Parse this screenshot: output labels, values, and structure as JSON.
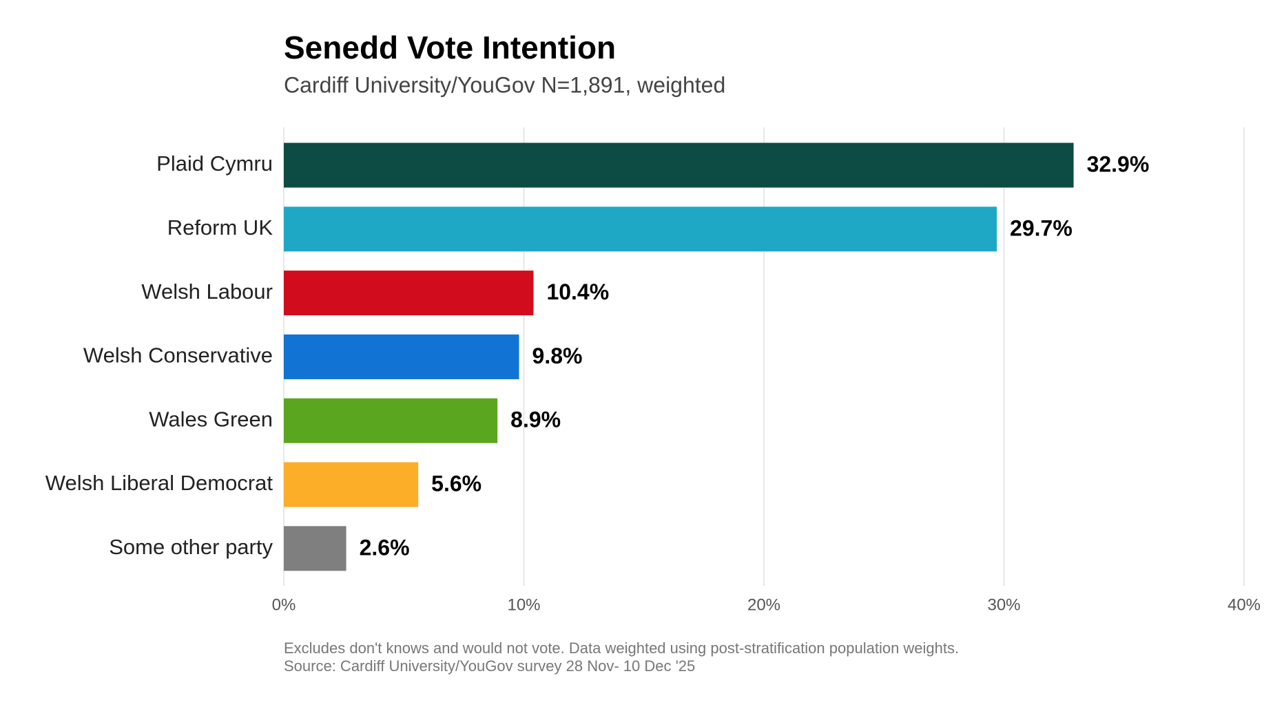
{
  "chart_data": {
    "type": "bar",
    "orientation": "horizontal",
    "title": "Senedd Vote Intention",
    "subtitle": "Cardiff University/YouGov N=1,891, weighted",
    "categories": [
      "Plaid Cymru",
      "Reform UK",
      "Welsh Labour",
      "Welsh Conservative",
      "Wales Green",
      "Welsh Liberal Democrat",
      "Some other party"
    ],
    "values": [
      32.9,
      29.7,
      10.4,
      9.8,
      8.9,
      5.6,
      2.6
    ],
    "value_labels": [
      "32.9%",
      "29.7%",
      "10.4%",
      "9.8%",
      "8.9%",
      "5.6%",
      "2.6%"
    ],
    "colors": [
      "#0c4c44",
      "#1fa8c6",
      "#d10c1c",
      "#1173d4",
      "#5ba61f",
      "#fcae28",
      "#7f7f7f"
    ],
    "xlim": [
      0,
      40
    ],
    "xticks": [
      {
        "value": 0,
        "label": "0%"
      },
      {
        "value": 10,
        "label": "10%"
      },
      {
        "value": 20,
        "label": "20%"
      },
      {
        "value": 30,
        "label": "30%"
      },
      {
        "value": 40,
        "label": "40%"
      }
    ],
    "grid": true,
    "notes": [
      "Excludes don't knows and would not vote. Data weighted using post-stratification population weights.",
      "Source: Cardiff University/YouGov survey 28 Nov- 10 Dec '25"
    ]
  }
}
